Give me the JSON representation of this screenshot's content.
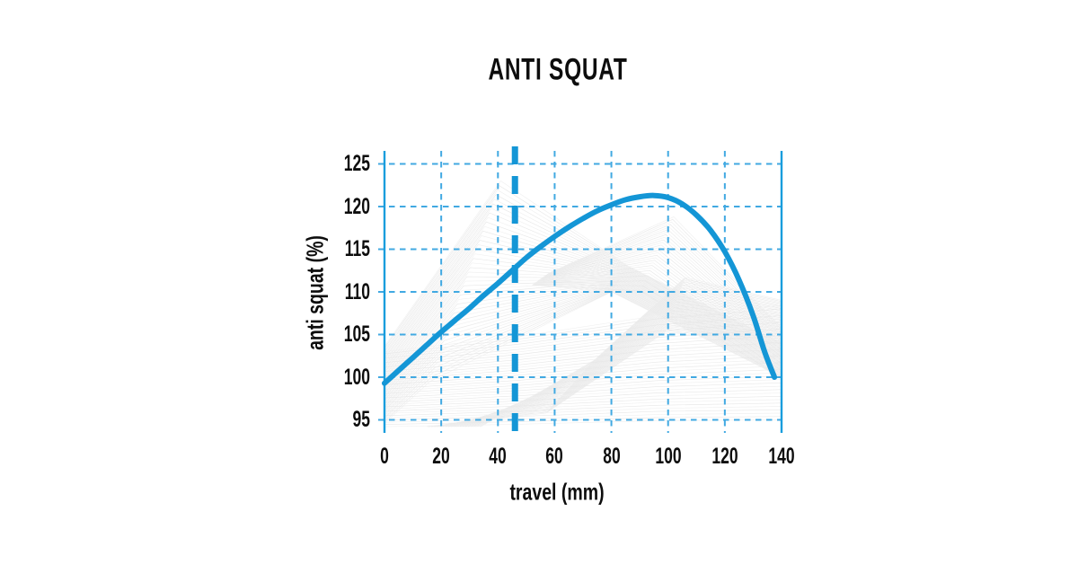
{
  "title": "ANTI SQUAT",
  "colors": {
    "curve": "#1496d6",
    "sag_line": "#1496d6",
    "grid": "#41a9e2",
    "axis": "#199ddd",
    "text": "#0d0d0d",
    "background_lines": "#e8e8e8"
  },
  "chart_data": {
    "type": "line",
    "title": "ANTI SQUAT",
    "xlabel": "travel (mm)",
    "ylabel": "anti squat (%)",
    "xlim": [
      0,
      140
    ],
    "ylim": [
      95,
      125
    ],
    "x_ticks": [
      0,
      20,
      40,
      60,
      80,
      100,
      120,
      140
    ],
    "y_ticks": [
      125,
      120,
      115,
      110,
      105,
      100,
      95
    ],
    "grid": "dashed",
    "legend": "none",
    "annotations": [
      {
        "type": "vline",
        "name": "sag-line",
        "x": 46,
        "style": "thick-dashed",
        "color": "#1496d6"
      }
    ],
    "series": [
      {
        "name": "anti squat",
        "color": "#1496d6",
        "points": [
          [
            0,
            99.3
          ],
          [
            5,
            100.8
          ],
          [
            10,
            102.3
          ],
          [
            15,
            103.8
          ],
          [
            20,
            105.3
          ],
          [
            25,
            106.7
          ],
          [
            30,
            108.1
          ],
          [
            35,
            109.6
          ],
          [
            40,
            111.0
          ],
          [
            45,
            112.5
          ],
          [
            50,
            114.0
          ],
          [
            55,
            115.3
          ],
          [
            60,
            116.5
          ],
          [
            65,
            117.6
          ],
          [
            70,
            118.6
          ],
          [
            75,
            119.5
          ],
          [
            80,
            120.2
          ],
          [
            85,
            120.8
          ],
          [
            90,
            121.15
          ],
          [
            95,
            121.3
          ],
          [
            100,
            121.05
          ],
          [
            105,
            120.3
          ],
          [
            110,
            119.0
          ],
          [
            115,
            117.2
          ],
          [
            120,
            114.7
          ],
          [
            125,
            111.4
          ],
          [
            130,
            107.2
          ],
          [
            134,
            103.0
          ],
          [
            137.5,
            100.0
          ]
        ]
      }
    ]
  }
}
